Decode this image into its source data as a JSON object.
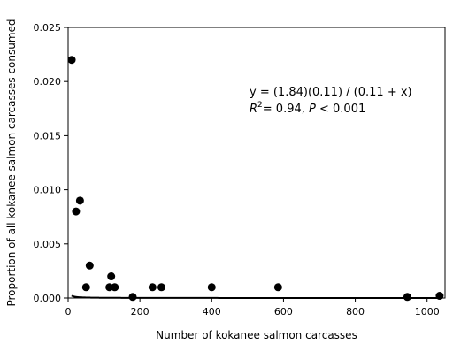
{
  "chart_data": {
    "type": "scatter",
    "title": "",
    "xlabel": "Number of kokanee salmon carcasses",
    "ylabel": "Proportion of all kokanee salmon carcasses consumed",
    "xlim": [
      0,
      1050
    ],
    "ylim": [
      0,
      0.025
    ],
    "xticks": [
      0,
      200,
      400,
      600,
      800,
      1000
    ],
    "xtick_labels": [
      "0",
      "200",
      "400",
      "600",
      "800",
      "1000"
    ],
    "yticks": [
      0,
      0.005,
      0.01,
      0.015,
      0.02,
      0.025
    ],
    "ytick_labels": [
      "0.000",
      "0.005",
      "0.010",
      "0.015",
      "0.020",
      "0.025"
    ],
    "grid": false,
    "series": [
      {
        "type": "scatter",
        "points": [
          {
            "x": 10,
            "y": 0.022
          },
          {
            "x": 22,
            "y": 0.008
          },
          {
            "x": 33,
            "y": 0.009
          },
          {
            "x": 50,
            "y": 0.001
          },
          {
            "x": 60,
            "y": 0.003
          },
          {
            "x": 115,
            "y": 0.001
          },
          {
            "x": 120,
            "y": 0.002
          },
          {
            "x": 130,
            "y": 0.001
          },
          {
            "x": 180,
            "y": 0.0001
          },
          {
            "x": 235,
            "y": 0.001
          },
          {
            "x": 260,
            "y": 0.001
          },
          {
            "x": 400,
            "y": 0.001
          },
          {
            "x": 585,
            "y": 0.001
          },
          {
            "x": 945,
            "y": 0.0001
          },
          {
            "x": 1035,
            "y": 0.0002
          }
        ]
      },
      {
        "type": "line",
        "formula": "y = (1.84)(0.11) / (0.11 + x)",
        "a": 1.84,
        "b": 0.11,
        "x_from": 10,
        "x_to": 1040
      }
    ],
    "annotations": [
      {
        "id": "equation",
        "text": "y = (1.84)(0.11) / (0.11 + x)"
      },
      {
        "id": "stats",
        "r_symbol": "R",
        "r_sup": "2",
        "r_value": "= 0.94, ",
        "p_symbol": "P",
        "p_value": " < 0.001"
      }
    ]
  }
}
